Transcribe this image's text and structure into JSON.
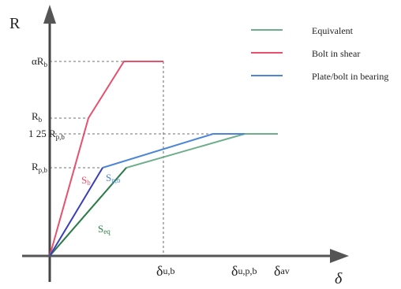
{
  "axes": {
    "y_label": "R",
    "x_label": "δ"
  },
  "y_labels": [
    {
      "main": "αR",
      "sub": "b"
    },
    {
      "main": "R",
      "sub": "b"
    },
    {
      "main": "1 25 R",
      "sub": "p,b"
    },
    {
      "main": "R",
      "sub": "p,b"
    }
  ],
  "x_labels": [
    {
      "main": "δ",
      "sub": "u,b"
    },
    {
      "main": "δ",
      "sub": "u,p,b"
    },
    {
      "main": "δ",
      "sub": "av"
    }
  ],
  "curve_labels": [
    {
      "main": "S",
      "sub": "b"
    },
    {
      "main": "S",
      "sub": "p,b"
    },
    {
      "main": "S",
      "sub": "eq"
    }
  ],
  "legend": [
    "Equivalent",
    "Bolt in shear",
    "Plate/bolt in bearing"
  ]
}
